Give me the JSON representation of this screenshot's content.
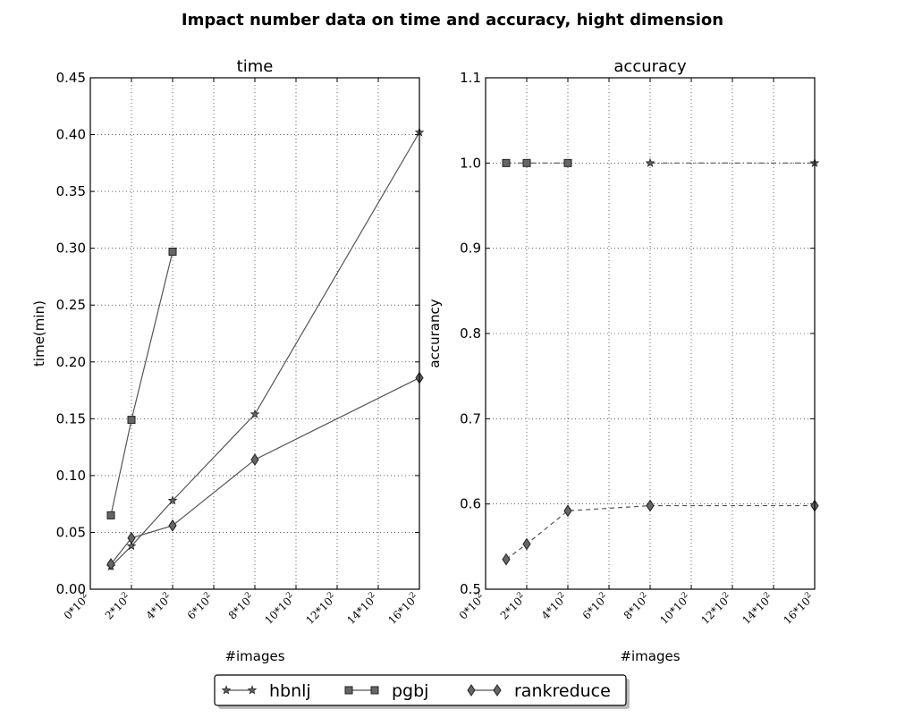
{
  "figure": {
    "title": "Impact number data on time and accuracy, hight dimension"
  },
  "colors": {
    "line": "#555555",
    "marker_fill": "#666666",
    "marker_stroke": "#222222",
    "grid": "#000000"
  },
  "legend": {
    "placement": "bottom-center",
    "entries": [
      {
        "label": "hbnlj",
        "marker": "star"
      },
      {
        "label": "pgbj",
        "marker": "square"
      },
      {
        "label": "rankreduce",
        "marker": "diamond"
      }
    ]
  },
  "chart_data": [
    {
      "type": "line",
      "title": "time",
      "xlabel": "#images",
      "ylabel": "time(min)",
      "xlim": [
        0,
        1600
      ],
      "ylim": [
        0,
        0.45
      ],
      "grid": true,
      "x_ticks": [
        0,
        200,
        400,
        600,
        800,
        1000,
        1200,
        1400,
        1600
      ],
      "x_tick_labels": [
        "0*10²",
        "2*10²",
        "4*10²",
        "6*10²",
        "8*10²",
        "10*10²",
        "12*10²",
        "14*10²",
        "16*10²"
      ],
      "y_ticks": [
        0.0,
        0.05,
        0.1,
        0.15,
        0.2,
        0.25,
        0.3,
        0.35,
        0.4,
        0.45
      ],
      "y_tick_labels": [
        "0.00",
        "0.05",
        "0.10",
        "0.15",
        "0.20",
        "0.25",
        "0.30",
        "0.35",
        "0.40",
        "0.45"
      ],
      "series": [
        {
          "name": "hbnlj",
          "marker": "star",
          "dash": "solid",
          "x": [
            100,
            200,
            400,
            800,
            1600
          ],
          "y": [
            0.02,
            0.038,
            0.078,
            0.154,
            0.402
          ]
        },
        {
          "name": "pgbj",
          "marker": "square",
          "dash": "solid",
          "x": [
            100,
            200,
            400
          ],
          "y": [
            0.065,
            0.149,
            0.297
          ]
        },
        {
          "name": "rankreduce",
          "marker": "diamond",
          "dash": "solid",
          "x": [
            100,
            200,
            400,
            800,
            1600
          ],
          "y": [
            0.022,
            0.045,
            0.056,
            0.114,
            0.186
          ]
        }
      ]
    },
    {
      "type": "line",
      "title": "accuracy",
      "xlabel": "#images",
      "ylabel": "accurancy",
      "xlim": [
        0,
        1600
      ],
      "ylim": [
        0.5,
        1.1
      ],
      "grid": true,
      "x_ticks": [
        0,
        200,
        400,
        600,
        800,
        1000,
        1200,
        1400,
        1600
      ],
      "x_tick_labels": [
        "0*10²",
        "2*10²",
        "4*10²",
        "6*10²",
        "8*10²",
        "10*10²",
        "12*10²",
        "14*10²",
        "16*10²"
      ],
      "y_ticks": [
        0.5,
        0.6,
        0.7,
        0.8,
        0.9,
        1.0,
        1.1
      ],
      "y_tick_labels": [
        "0.5",
        "0.6",
        "0.7",
        "0.8",
        "0.9",
        "1.0",
        "1.1"
      ],
      "series": [
        {
          "name": "hbnlj",
          "marker": "star",
          "dash": "dashdot",
          "x": [
            800,
            1600
          ],
          "y": [
            1.0,
            1.0
          ]
        },
        {
          "name": "pgbj",
          "marker": "square",
          "dash": "dashdot",
          "x": [
            100,
            200,
            400
          ],
          "y": [
            1.0,
            1.0,
            1.0
          ]
        },
        {
          "name": "rankreduce",
          "marker": "diamond",
          "dash": "dashed",
          "x": [
            100,
            200,
            400,
            800,
            1600
          ],
          "y": [
            0.535,
            0.553,
            0.592,
            0.598,
            0.598
          ]
        }
      ]
    }
  ]
}
